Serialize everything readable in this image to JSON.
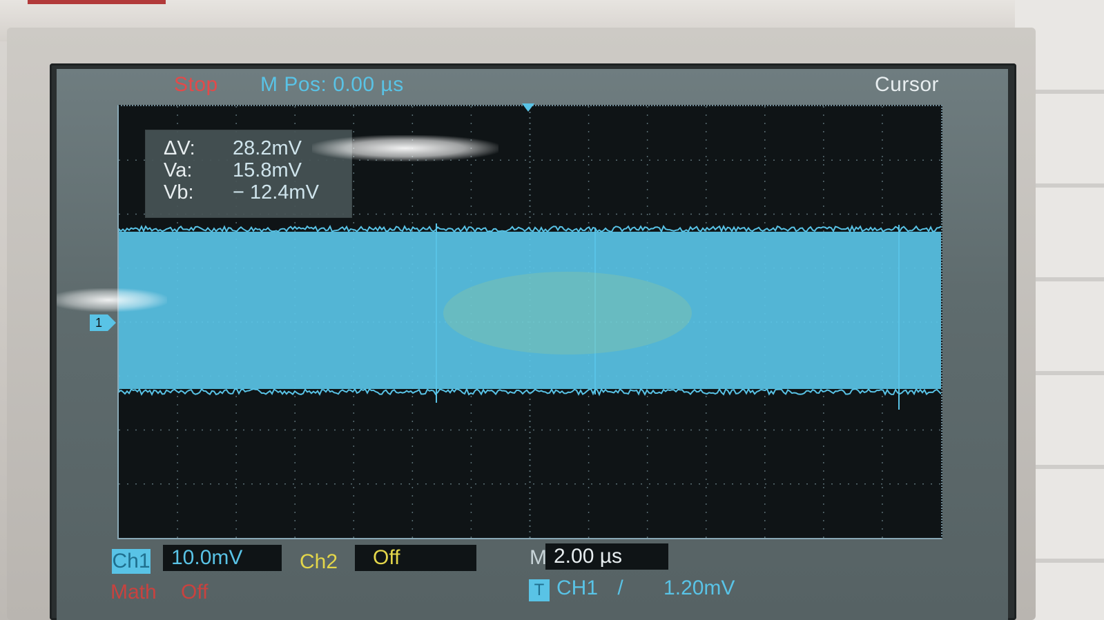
{
  "header": {
    "run_state": "Stop",
    "horizontal_position": "M Pos: 0.00 µs",
    "menu_title": "Cursor"
  },
  "cursor_measure": {
    "rows": [
      {
        "label": "ΔV:",
        "value": "28.2mV"
      },
      {
        "label": "Va:",
        "value": "15.8mV"
      },
      {
        "label": "Vb:",
        "value": "− 12.4mV"
      }
    ]
  },
  "waveform": {
    "channel_marker": "1",
    "color": "#59c3e6",
    "grid_color": "#5a6e74"
  },
  "status_bar": {
    "ch1": {
      "label": "Ch1",
      "scale": "10.0mV"
    },
    "ch2": {
      "label": "Ch2",
      "scale": "Off"
    },
    "math": {
      "label": "Math",
      "state": "Off"
    },
    "timebase": {
      "label": "M",
      "value": "2.00 µs"
    },
    "trigger": {
      "badge": "T",
      "source": "CH1",
      "slope": "/",
      "level": "1.20mV"
    }
  }
}
